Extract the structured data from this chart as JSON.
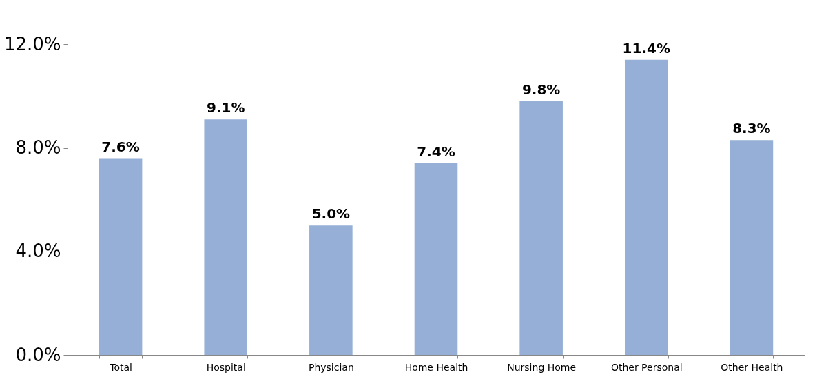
{
  "chart_data": {
    "type": "bar",
    "categories": [
      "Total",
      "Hospital",
      "Physician",
      "Home Health",
      "Nursing Home",
      "Other Personal",
      "Other Health"
    ],
    "values": [
      7.6,
      9.1,
      5.0,
      7.4,
      9.8,
      11.4,
      8.3
    ],
    "value_labels": [
      "7.6%",
      "9.1%",
      "5.0%",
      "7.4%",
      "9.8%",
      "11.4%",
      "8.3%"
    ],
    "color": "#95afd7",
    "ylim": [
      0,
      13.5
    ],
    "yticks": [
      {
        "value": 0,
        "label": "0.0%"
      },
      {
        "value": 4,
        "label": "4.0%"
      },
      {
        "value": 8,
        "label": "8.0%"
      },
      {
        "value": 12,
        "label": "12.0%"
      }
    ],
    "grid": false
  }
}
